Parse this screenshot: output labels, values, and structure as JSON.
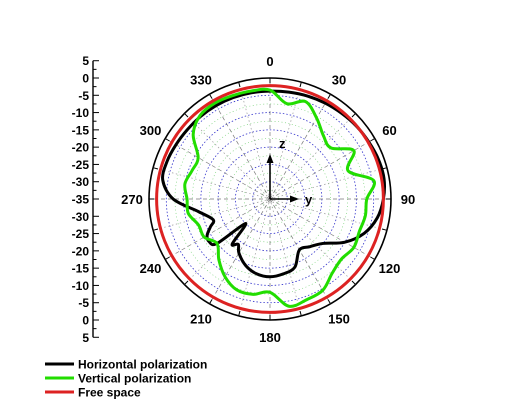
{
  "chart_data": {
    "type": "polar",
    "angle_ticks": [
      "0",
      "30",
      "60",
      "90",
      "120",
      "150",
      "180",
      "210",
      "240",
      "270",
      "300",
      "330"
    ],
    "angle_tick_values": [
      0,
      30,
      60,
      90,
      120,
      150,
      180,
      210,
      240,
      270,
      300,
      330
    ],
    "radial_scale_db": {
      "outer": 0,
      "inner": -35
    },
    "radial_tick_labels_top": [
      "5",
      "0",
      "-5",
      "-10",
      "-15",
      "-20",
      "-25",
      "-30"
    ],
    "radial_tick_labels_center": "-35",
    "radial_tick_labels_bottom": [
      "-30",
      "-25",
      "-20",
      "-15",
      "-10",
      "-5",
      "0",
      "5"
    ],
    "radial_tick_values_top": [
      5,
      0,
      -5,
      -10,
      -15,
      -20,
      -25,
      -30
    ],
    "radial_tick_values_bottom": [
      -30,
      -25,
      -20,
      -15,
      -10,
      -5,
      0,
      5
    ],
    "inner_axes": {
      "z": "z",
      "y": "y"
    },
    "series": [
      {
        "name": "Horizontal polarization",
        "color": "#000000",
        "angles": [
          0,
          10,
          20,
          30,
          40,
          50,
          60,
          70,
          80,
          90,
          100,
          110,
          120,
          130,
          140,
          150,
          160,
          170,
          180,
          190,
          200,
          210,
          215,
          220,
          225,
          230,
          235,
          240,
          245,
          250,
          260,
          270,
          280,
          290,
          300,
          310,
          320,
          330,
          340,
          350
        ],
        "values_db": [
          -3.8,
          -3.6,
          -3.3,
          -3,
          -2.7,
          -2.3,
          -2,
          -1.6,
          -1.5,
          -2.2,
          -3.5,
          -6,
          -10,
          -15,
          -17,
          -18,
          -14,
          -13,
          -12.5,
          -13,
          -14.5,
          -17,
          -19,
          -18,
          -25,
          -15,
          -13.5,
          -14,
          -16,
          -17.5,
          -14,
          -7,
          -3.5,
          -3.3,
          -3.6,
          -3.8,
          -3.8,
          -3.8,
          -3.8,
          -3.8
        ]
      },
      {
        "name": "Vertical polarization",
        "color": "#22dd00",
        "angles": [
          0,
          10,
          20,
          30,
          40,
          50,
          60,
          70,
          80,
          90,
          100,
          110,
          120,
          130,
          140,
          150,
          160,
          170,
          180,
          190,
          200,
          210,
          220,
          230,
          240,
          250,
          260,
          270,
          280,
          290,
          300,
          310,
          320,
          330,
          340,
          350
        ],
        "values_db": [
          -3.5,
          -7,
          -5,
          -8,
          -11,
          -12,
          -7,
          -11,
          -4.5,
          -7,
          -7,
          -7.5,
          -7,
          -8,
          -7,
          -4.5,
          -4,
          -3.5,
          -8,
          -7,
          -7,
          -9,
          -12,
          -15,
          -13,
          -13,
          -11,
          -11,
          -10,
          -11,
          -11,
          -6,
          -3.5,
          -3,
          -3.2,
          -3.3
        ]
      },
      {
        "name": "Free space",
        "color": "#dd2222",
        "angles": [
          0,
          30,
          60,
          90,
          120,
          150,
          180,
          210,
          240,
          270,
          300,
          330
        ],
        "values_db": [
          -2.2,
          -2.2,
          -2.2,
          -2.2,
          -2.2,
          -2.2,
          -2.2,
          -2.2,
          -2.2,
          -2.2,
          -2.2,
          -2.2
        ]
      }
    ],
    "legend_position": "bottom-left",
    "grid": true
  }
}
